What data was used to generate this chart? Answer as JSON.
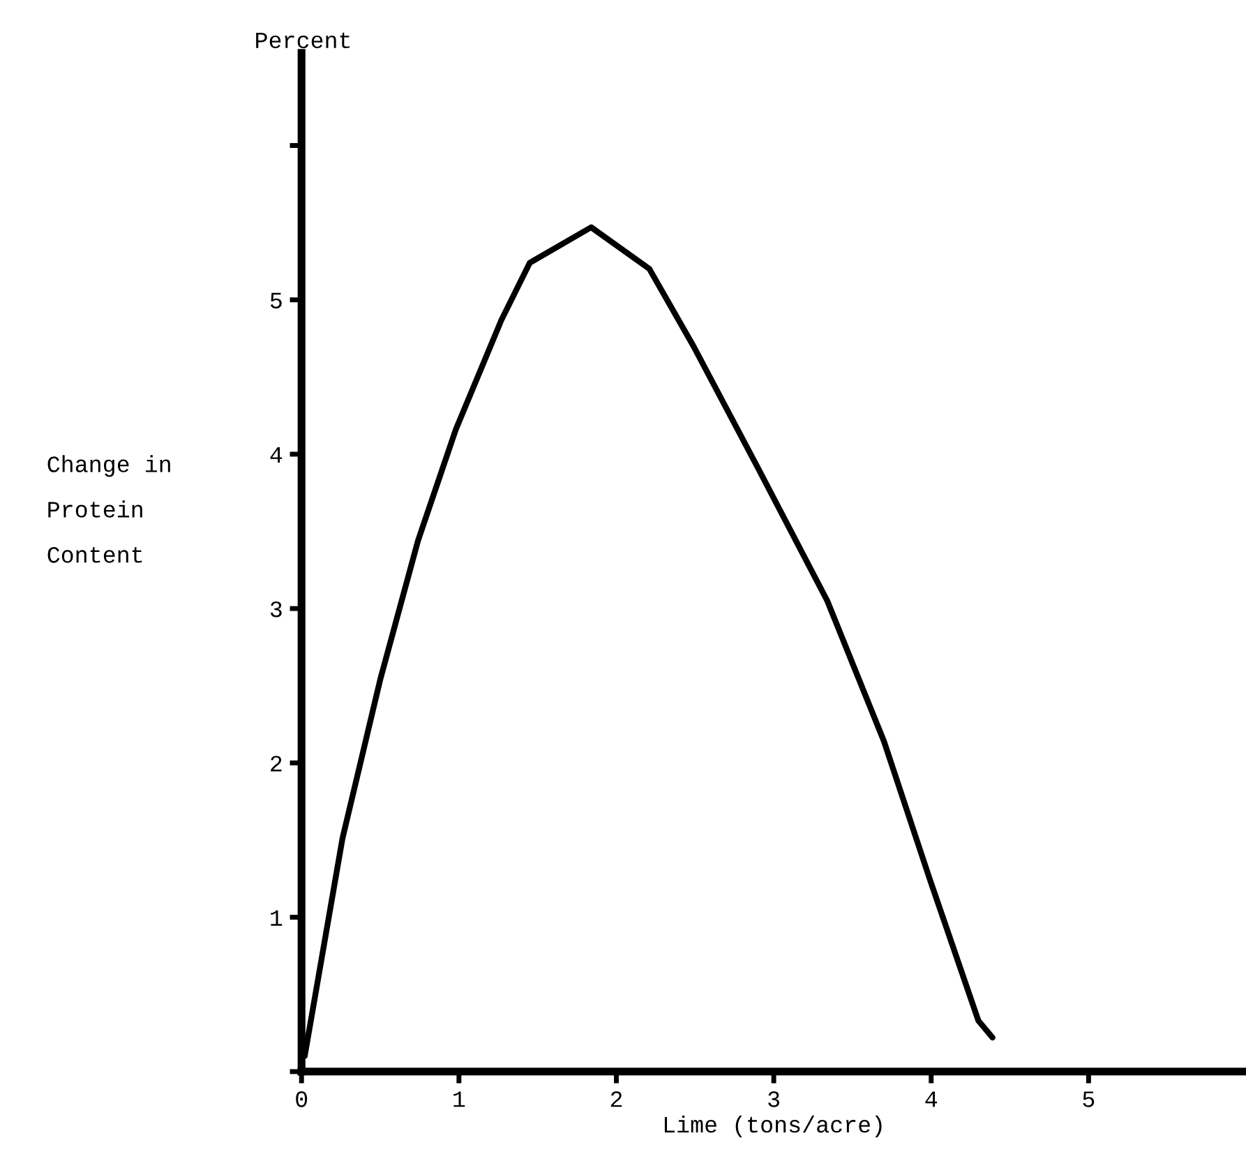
{
  "chart_data": {
    "type": "line",
    "xlabel": "Lime (tons/acre)",
    "ylabel": "Change in\nProtein\nContent",
    "annotations": [
      "Percent"
    ],
    "x": [
      0.02,
      0.26,
      0.5,
      0.74,
      0.98,
      1.27,
      1.45,
      1.84,
      2.21,
      2.49,
      2.9,
      3.34,
      3.7,
      3.99,
      4.3,
      4.39
    ],
    "series": [
      {
        "color": "#000000",
        "values": [
          0.1,
          1.51,
          2.54,
          3.44,
          4.16,
          4.87,
          5.24,
          5.47,
          5.2,
          4.7,
          3.91,
          3.05,
          2.14,
          1.25,
          0.33,
          0.22
        ]
      }
    ],
    "xlim": [
      0,
      6.0
    ],
    "ylim": [
      0,
      6.6
    ],
    "xticks": [
      0,
      1,
      2,
      3,
      4,
      5
    ],
    "yticks": [
      {
        "value": 0,
        "label": null
      },
      1,
      2,
      3,
      4,
      5,
      {
        "value": 6,
        "label": null
      }
    ],
    "grid": false,
    "legend": false,
    "marker": "none",
    "line_style": "solid"
  }
}
